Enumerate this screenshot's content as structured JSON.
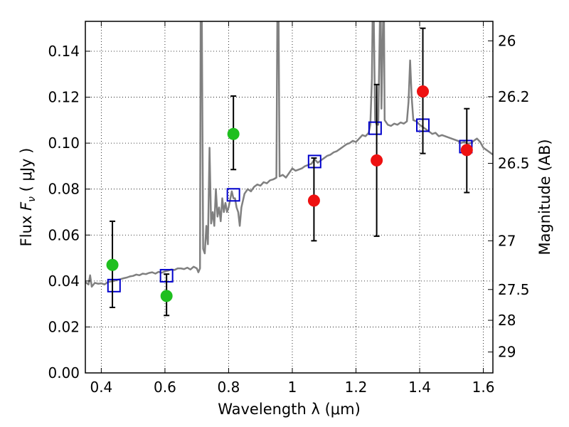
{
  "chart_data": {
    "type": "scatter",
    "xlabel": "Wavelength  λ (μm)",
    "ylabel": "Flux  F_ν  ( μJy )",
    "ylabel_right": "Magnitude (AB)",
    "xlim": [
      0.35,
      1.63
    ],
    "ylim": [
      0.0,
      0.153
    ],
    "grid": true,
    "x_ticks": [
      0.4,
      0.6,
      0.8,
      1.0,
      1.2,
      1.4,
      1.6
    ],
    "x_tick_labels": [
      "0.4",
      "0.6",
      "0.8",
      "1",
      "1.2",
      "1.4",
      "1.6"
    ],
    "y_ticks": [
      0.0,
      0.02,
      0.04,
      0.06,
      0.08,
      0.1,
      0.12,
      0.14
    ],
    "y_tick_labels": [
      "0.00",
      "0.02",
      "0.04",
      "0.06",
      "0.08",
      "0.10",
      "0.12",
      "0.14"
    ],
    "right_axis_ticks": [
      {
        "label": "26",
        "flux": 0.1445
      },
      {
        "label": "26.2",
        "flux": 0.1202
      },
      {
        "label": "26.5",
        "flux": 0.0912
      },
      {
        "label": "27",
        "flux": 0.0575
      },
      {
        "label": "27.5",
        "flux": 0.0363
      },
      {
        "label": "28",
        "flux": 0.0229
      },
      {
        "label": "29",
        "flux": 0.0091
      }
    ],
    "series": [
      {
        "color": "#808080",
        "style": "line",
        "points": [
          [
            0.35,
            0.0395
          ],
          [
            0.36,
            0.0385
          ],
          [
            0.365,
            0.0425
          ],
          [
            0.37,
            0.0375
          ],
          [
            0.38,
            0.0392
          ],
          [
            0.39,
            0.0388
          ],
          [
            0.4,
            0.039
          ],
          [
            0.41,
            0.0385
          ],
          [
            0.42,
            0.0395
          ],
          [
            0.43,
            0.0398
          ],
          [
            0.44,
            0.04
          ],
          [
            0.45,
            0.0405
          ],
          [
            0.46,
            0.0408
          ],
          [
            0.47,
            0.0412
          ],
          [
            0.48,
            0.0415
          ],
          [
            0.49,
            0.042
          ],
          [
            0.5,
            0.0422
          ],
          [
            0.51,
            0.0428
          ],
          [
            0.52,
            0.0425
          ],
          [
            0.53,
            0.0432
          ],
          [
            0.54,
            0.043
          ],
          [
            0.55,
            0.0435
          ],
          [
            0.56,
            0.0438
          ],
          [
            0.57,
            0.0432
          ],
          [
            0.58,
            0.044
          ],
          [
            0.59,
            0.0436
          ],
          [
            0.6,
            0.0442
          ],
          [
            0.61,
            0.0445
          ],
          [
            0.62,
            0.045
          ],
          [
            0.63,
            0.0448
          ],
          [
            0.64,
            0.0455
          ],
          [
            0.65,
            0.0455
          ],
          [
            0.66,
            0.0452
          ],
          [
            0.67,
            0.0458
          ],
          [
            0.68,
            0.045
          ],
          [
            0.69,
            0.0462
          ],
          [
            0.7,
            0.0455
          ],
          [
            0.705,
            0.0438
          ],
          [
            0.71,
            0.0455
          ],
          [
            0.712,
            0.153
          ],
          [
            0.716,
            0.153
          ],
          [
            0.72,
            0.054
          ],
          [
            0.725,
            0.052
          ],
          [
            0.73,
            0.064
          ],
          [
            0.735,
            0.056
          ],
          [
            0.74,
            0.098
          ],
          [
            0.745,
            0.065
          ],
          [
            0.75,
            0.07
          ],
          [
            0.755,
            0.064
          ],
          [
            0.76,
            0.08
          ],
          [
            0.765,
            0.068
          ],
          [
            0.77,
            0.072
          ],
          [
            0.775,
            0.066
          ],
          [
            0.78,
            0.076
          ],
          [
            0.785,
            0.07
          ],
          [
            0.79,
            0.074
          ],
          [
            0.795,
            0.07
          ],
          [
            0.8,
            0.072
          ],
          [
            0.81,
            0.079
          ],
          [
            0.815,
            0.076
          ],
          [
            0.82,
            0.076
          ],
          [
            0.825,
            0.072
          ],
          [
            0.83,
            0.07
          ],
          [
            0.835,
            0.064
          ],
          [
            0.84,
            0.072
          ],
          [
            0.85,
            0.078
          ],
          [
            0.86,
            0.08
          ],
          [
            0.87,
            0.079
          ],
          [
            0.88,
            0.081
          ],
          [
            0.89,
            0.082
          ],
          [
            0.9,
            0.0815
          ],
          [
            0.91,
            0.083
          ],
          [
            0.92,
            0.0825
          ],
          [
            0.93,
            0.0838
          ],
          [
            0.94,
            0.0842
          ],
          [
            0.95,
            0.085
          ],
          [
            0.953,
            0.153
          ],
          [
            0.957,
            0.153
          ],
          [
            0.96,
            0.0855
          ],
          [
            0.97,
            0.0862
          ],
          [
            0.98,
            0.085
          ],
          [
            0.99,
            0.087
          ],
          [
            1.0,
            0.089
          ],
          [
            1.01,
            0.088
          ],
          [
            1.02,
            0.0885
          ],
          [
            1.03,
            0.089
          ],
          [
            1.04,
            0.09
          ],
          [
            1.05,
            0.0905
          ],
          [
            1.06,
            0.091
          ],
          [
            1.07,
            0.093
          ],
          [
            1.08,
            0.0915
          ],
          [
            1.09,
            0.0925
          ],
          [
            1.1,
            0.0935
          ],
          [
            1.11,
            0.0945
          ],
          [
            1.12,
            0.095
          ],
          [
            1.13,
            0.096
          ],
          [
            1.14,
            0.0965
          ],
          [
            1.15,
            0.0975
          ],
          [
            1.16,
            0.0985
          ],
          [
            1.17,
            0.0995
          ],
          [
            1.18,
            0.1
          ],
          [
            1.19,
            0.101
          ],
          [
            1.2,
            0.1005
          ],
          [
            1.21,
            0.102
          ],
          [
            1.22,
            0.1035
          ],
          [
            1.23,
            0.103
          ],
          [
            1.24,
            0.1045
          ],
          [
            1.245,
            0.108
          ],
          [
            1.25,
            0.128
          ],
          [
            1.252,
            0.153
          ],
          [
            1.256,
            0.153
          ],
          [
            1.26,
            0.11
          ],
          [
            1.265,
            0.108
          ],
          [
            1.27,
            0.108
          ],
          [
            1.275,
            0.153
          ],
          [
            1.278,
            0.153
          ],
          [
            1.28,
            0.115
          ],
          [
            1.285,
            0.153
          ],
          [
            1.288,
            0.153
          ],
          [
            1.29,
            0.11
          ],
          [
            1.3,
            0.108
          ],
          [
            1.31,
            0.1075
          ],
          [
            1.32,
            0.1085
          ],
          [
            1.33,
            0.108
          ],
          [
            1.34,
            0.109
          ],
          [
            1.35,
            0.1085
          ],
          [
            1.36,
            0.1095
          ],
          [
            1.365,
            0.118
          ],
          [
            1.37,
            0.136
          ],
          [
            1.375,
            0.12
          ],
          [
            1.38,
            0.11
          ],
          [
            1.39,
            0.1095
          ],
          [
            1.4,
            0.108
          ],
          [
            1.41,
            0.107
          ],
          [
            1.42,
            0.106
          ],
          [
            1.43,
            0.105
          ],
          [
            1.44,
            0.104
          ],
          [
            1.45,
            0.1045
          ],
          [
            1.46,
            0.103
          ],
          [
            1.47,
            0.1035
          ],
          [
            1.48,
            0.103
          ],
          [
            1.49,
            0.1025
          ],
          [
            1.5,
            0.102
          ],
          [
            1.51,
            0.1015
          ],
          [
            1.52,
            0.101
          ],
          [
            1.53,
            0.1
          ],
          [
            1.54,
            0.1005
          ],
          [
            1.55,
            0.0998
          ],
          [
            1.56,
            0.1
          ],
          [
            1.57,
            0.101
          ],
          [
            1.58,
            0.102
          ],
          [
            1.59,
            0.1005
          ],
          [
            1.6,
            0.098
          ],
          [
            1.61,
            0.097
          ],
          [
            1.62,
            0.096
          ],
          [
            1.63,
            0.095
          ]
        ]
      },
      {
        "color": "#0000cc",
        "style": "open-square",
        "points": [
          [
            0.44,
            0.038
          ],
          [
            0.605,
            0.0423
          ],
          [
            0.815,
            0.0775
          ],
          [
            1.07,
            0.092
          ],
          [
            1.26,
            0.1065
          ],
          [
            1.41,
            0.1078
          ],
          [
            1.545,
            0.0985
          ]
        ]
      },
      {
        "color": "#1fbf1f",
        "style": "filled-circle",
        "points": [
          {
            "x": 0.435,
            "y": 0.047,
            "err_lo": 0.0285,
            "err_hi": 0.066
          },
          {
            "x": 0.605,
            "y": 0.0335,
            "err_lo": 0.025,
            "err_hi": 0.043
          },
          {
            "x": 0.815,
            "y": 0.104,
            "err_lo": 0.0885,
            "err_hi": 0.1205
          }
        ]
      },
      {
        "color": "#ee1111",
        "style": "filled-circle",
        "points": [
          {
            "x": 1.068,
            "y": 0.075,
            "err_lo": 0.0575,
            "err_hi": 0.0935
          },
          {
            "x": 1.265,
            "y": 0.0925,
            "err_lo": 0.0595,
            "err_hi": 0.1255
          },
          {
            "x": 1.41,
            "y": 0.1225,
            "err_lo": 0.0955,
            "err_hi": 0.15
          },
          {
            "x": 1.548,
            "y": 0.097,
            "err_lo": 0.0785,
            "err_hi": 0.115
          }
        ]
      }
    ]
  }
}
